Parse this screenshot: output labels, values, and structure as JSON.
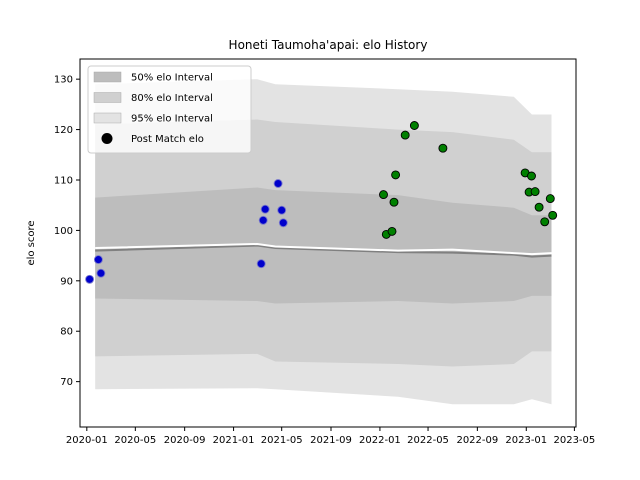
{
  "chart_data": {
    "type": "scatter",
    "title": "Honeti Taumoha'apai: elo History",
    "xlabel": "",
    "ylabel": "elo score",
    "x_type": "date",
    "xlim": [
      "2019-12-15",
      "2023-05-05"
    ],
    "ylim": [
      61,
      134
    ],
    "x_ticks": [
      "2020-01",
      "2020-05",
      "2020-09",
      "2021-01",
      "2021-05",
      "2021-09",
      "2022-01",
      "2022-05",
      "2022-09",
      "2023-01",
      "2023-05"
    ],
    "y_ticks": [
      70,
      80,
      90,
      100,
      110,
      120,
      130
    ],
    "legend": {
      "position": "top-left",
      "entries": [
        "50% elo Interval",
        "80% elo Interval",
        "95% elo Interval",
        "Post Match elo"
      ]
    },
    "colors": {
      "band_95": "#e3e3e3",
      "band_80": "#d0d0d0",
      "band_50": "#bdbdbd",
      "mean_line": "#808080",
      "median_line": "#ffffff",
      "points_2020_2021": "#0000cc",
      "points_2022_2023": "#008000"
    },
    "bands": {
      "dates": [
        "2020-01-22",
        "2021-03-01",
        "2021-04-15",
        "2022-02-15",
        "2022-07-01",
        "2022-12-01",
        "2023-01-15",
        "2023-03-05"
      ],
      "p95_high": [
        129.0,
        130.0,
        129.0,
        128.0,
        127.5,
        126.5,
        123.0,
        123.0
      ],
      "p95_low": [
        68.5,
        68.7,
        68.5,
        67.0,
        65.5,
        65.5,
        66.5,
        65.5
      ],
      "p80_high": [
        121.0,
        122.0,
        121.5,
        120.0,
        119.5,
        118.0,
        115.5,
        115.5
      ],
      "p80_low": [
        75.0,
        75.5,
        74.0,
        73.5,
        73.0,
        73.5,
        76.0,
        76.0
      ],
      "p50_high": [
        106.5,
        108.5,
        108.0,
        107.0,
        105.5,
        104.5,
        103.0,
        103.0
      ],
      "p50_low": [
        86.5,
        86.0,
        85.5,
        86.0,
        85.5,
        86.0,
        87.0,
        87.0
      ],
      "median": [
        96.5,
        97.3,
        96.8,
        96.0,
        96.2,
        95.5,
        95.3,
        95.5
      ],
      "mean": [
        96.0,
        97.0,
        96.5,
        95.7,
        95.6,
        95.2,
        94.8,
        95.0
      ]
    },
    "series": [
      {
        "name": "Post Match elo",
        "color_key": "points_2020_2021",
        "points": [
          [
            "2020-01-08",
            90.3
          ],
          [
            "2020-01-30",
            94.2
          ],
          [
            "2020-02-05",
            91.5
          ],
          [
            "2021-03-11",
            93.4
          ],
          [
            "2021-03-16",
            102.0
          ],
          [
            "2021-03-21",
            104.2
          ],
          [
            "2021-04-22",
            109.3
          ],
          [
            "2021-05-01",
            104.0
          ],
          [
            "2021-05-05",
            101.5
          ]
        ]
      },
      {
        "name": "Post Match elo",
        "color_key": "points_2022_2023",
        "points": [
          [
            "2022-01-10",
            107.1
          ],
          [
            "2022-01-17",
            99.2
          ],
          [
            "2022-01-31",
            99.8
          ],
          [
            "2022-02-05",
            105.6
          ],
          [
            "2022-02-09",
            111.0
          ],
          [
            "2022-03-05",
            118.9
          ],
          [
            "2022-03-28",
            120.8
          ],
          [
            "2022-06-07",
            116.3
          ],
          [
            "2022-12-29",
            111.4
          ],
          [
            "2023-01-08",
            107.6
          ],
          [
            "2023-01-14",
            110.8
          ],
          [
            "2023-01-23",
            107.7
          ],
          [
            "2023-02-02",
            104.6
          ],
          [
            "2023-02-16",
            101.7
          ],
          [
            "2023-03-02",
            106.3
          ],
          [
            "2023-03-08",
            103.0
          ]
        ]
      }
    ]
  }
}
